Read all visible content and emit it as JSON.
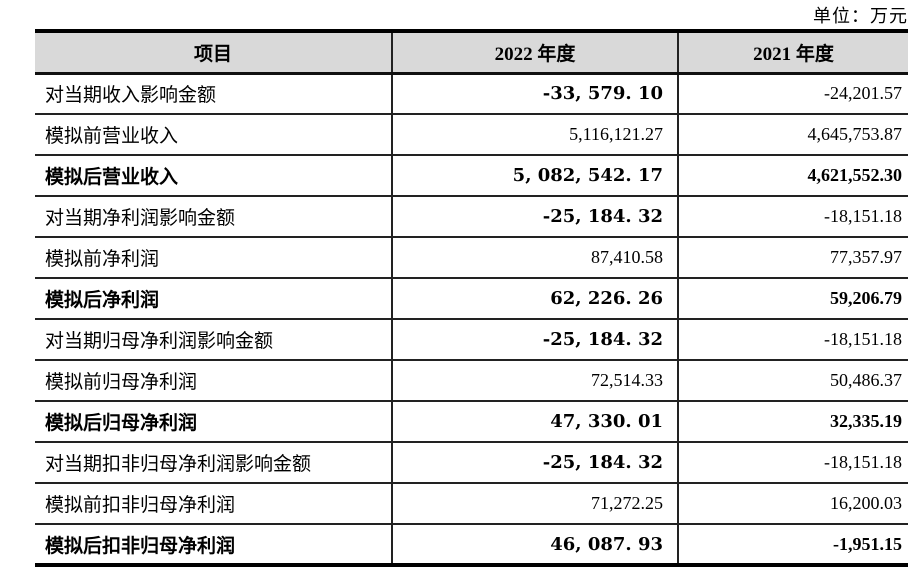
{
  "page": {
    "unit_label": "单位：万元"
  },
  "table": {
    "header_bg": "#d9d9d9",
    "headers": {
      "item": "项目",
      "y2022": "2022 年度",
      "y2021": "2021 年度"
    },
    "rows": [
      {
        "label": "对当期收入影响金额",
        "v2022": "-33, 579. 10",
        "v2021": "-24,201.57"
      },
      {
        "label": "模拟前营业收入",
        "v2022": "5,116,121.27",
        "v2021": "4,645,753.87"
      },
      {
        "label": "模拟后营业收入",
        "v2022": "5, 082, 542. 17",
        "v2021": "4,621,552.30"
      },
      {
        "label": "对当期净利润影响金额",
        "v2022": "-25, 184. 32",
        "v2021": "-18,151.18"
      },
      {
        "label": "模拟前净利润",
        "v2022": "87,410.58",
        "v2021": "77,357.97"
      },
      {
        "label": "模拟后净利润",
        "v2022": "62, 226. 26",
        "v2021": "59,206.79"
      },
      {
        "label": "对当期归母净利润影响金额",
        "v2022": "-25, 184. 32",
        "v2021": "-18,151.18"
      },
      {
        "label": "模拟前归母净利润",
        "v2022": "72,514.33",
        "v2021": "50,486.37"
      },
      {
        "label": "模拟后归母净利润",
        "v2022": "47, 330. 01",
        "v2021": "32,335.19"
      },
      {
        "label": "对当期扣非归母净利润影响金额",
        "v2022": "-25, 184. 32",
        "v2021": "-18,151.18"
      },
      {
        "label": "模拟前扣非归母净利润",
        "v2022": "71,272.25",
        "v2021": "16,200.03"
      },
      {
        "label": "模拟后扣非归母净利润",
        "v2022": "46, 087. 93",
        "v2021": "-1,951.15"
      }
    ]
  }
}
